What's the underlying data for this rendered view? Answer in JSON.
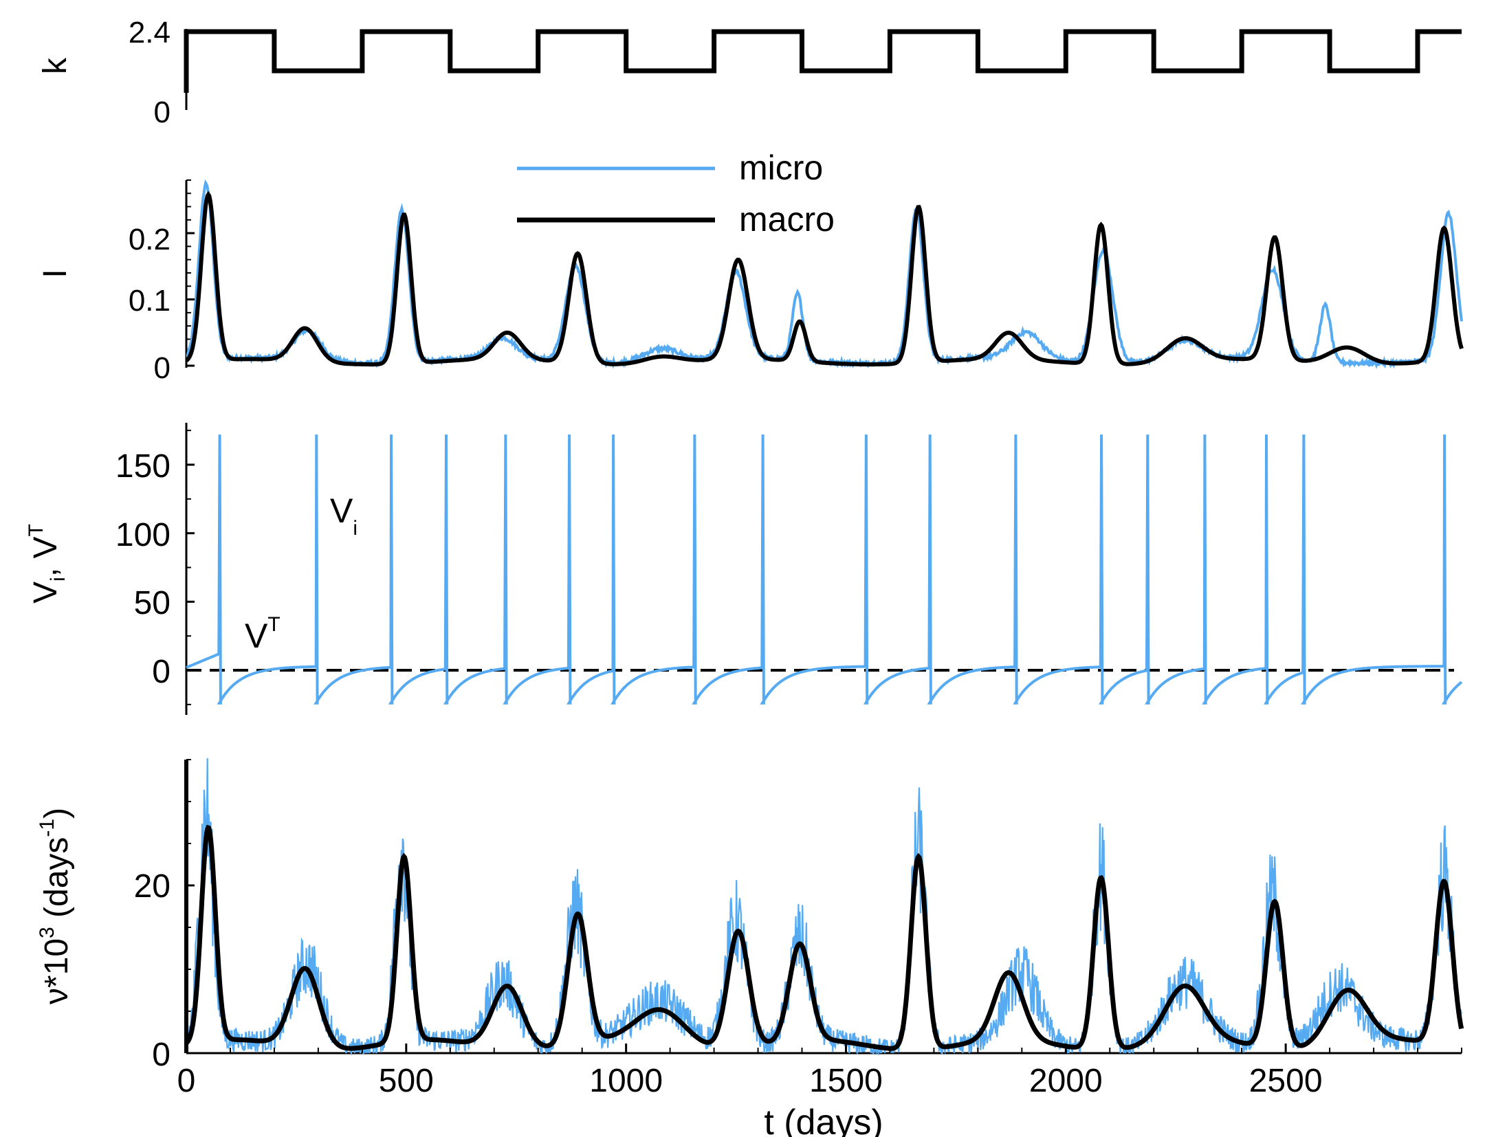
{
  "colors": {
    "micro": "#55aaf2",
    "macro": "#000000"
  },
  "legend": {
    "micro_label": "micro",
    "macro_label": "macro"
  },
  "xaxis": {
    "label": "t (days)",
    "ticks": [
      0,
      500,
      1000,
      1500,
      2000,
      2500
    ],
    "range": [
      0,
      2900
    ]
  },
  "chart_data": [
    {
      "type": "line",
      "id": "k",
      "ylabel": "k",
      "ylim": [
        0,
        2.4
      ],
      "yticks": [
        "0",
        "2.4"
      ],
      "series": [
        {
          "name": "k",
          "style": "step",
          "x": [
            0,
            200,
            400,
            600,
            800,
            1000,
            1200,
            1400,
            1600,
            1800,
            2000,
            2200,
            2400,
            2600,
            2800,
            2900
          ],
          "values": [
            2.4,
            1.2,
            2.4,
            1.2,
            2.4,
            1.2,
            2.4,
            1.2,
            2.4,
            1.2,
            2.4,
            1.2,
            2.4,
            1.2,
            2.4,
            2.4
          ]
        }
      ]
    },
    {
      "type": "line",
      "id": "I",
      "ylabel": "I",
      "ylim": [
        0,
        0.28
      ],
      "yticks": [
        "0",
        "0.1",
        "0.2"
      ],
      "peaks_macro": [
        [
          50,
          0.25,
          16
        ],
        [
          270,
          0.05,
          28
        ],
        [
          495,
          0.225,
          16
        ],
        [
          730,
          0.04,
          30
        ],
        [
          890,
          0.165,
          20
        ],
        [
          1080,
          0.01,
          40
        ],
        [
          1255,
          0.15,
          22
        ],
        [
          1395,
          0.06,
          14
        ],
        [
          1665,
          0.235,
          16
        ],
        [
          1870,
          0.04,
          30
        ],
        [
          2080,
          0.21,
          16
        ],
        [
          2270,
          0.035,
          40
        ],
        [
          2475,
          0.185,
          18
        ],
        [
          2640,
          0.025,
          40
        ],
        [
          2860,
          0.2,
          18
        ]
      ],
      "peaks_micro": [
        [
          45,
          0.265,
          16
        ],
        [
          275,
          0.045,
          30
        ],
        [
          490,
          0.23,
          16
        ],
        [
          720,
          0.03,
          30
        ],
        [
          885,
          0.145,
          22
        ],
        [
          1080,
          0.02,
          40
        ],
        [
          1250,
          0.13,
          22
        ],
        [
          1390,
          0.1,
          12
        ],
        [
          1660,
          0.23,
          16
        ],
        [
          1910,
          0.04,
          34
        ],
        [
          2085,
          0.17,
          22
        ],
        [
          2270,
          0.03,
          40
        ],
        [
          2470,
          0.135,
          24
        ],
        [
          2590,
          0.085,
          12
        ],
        [
          2870,
          0.22,
          18
        ]
      ]
    },
    {
      "type": "line",
      "id": "V",
      "ylabel": "V_i, V^T",
      "ylim": [
        -30,
        180
      ],
      "yticks": [
        "0",
        "50",
        "100",
        "150"
      ],
      "annotations": {
        "vi": "V",
        "vi_sub": "i",
        "vt": "V",
        "vt_sup": "T"
      },
      "threshold": 0,
      "spike_peak": 172,
      "spike_times": [
        75,
        295,
        465,
        590,
        725,
        870,
        970,
        1155,
        1310,
        1545,
        1690,
        1885,
        2080,
        2185,
        2315,
        2455,
        2540,
        2860
      ]
    },
    {
      "type": "line",
      "id": "nu",
      "ylabel": "ν*10³ (days⁻¹)",
      "ylim": [
        0,
        35
      ],
      "yticks": [
        "0",
        "20"
      ],
      "peaks_macro": [
        [
          50,
          25.5,
          16
        ],
        [
          270,
          9.5,
          32
        ],
        [
          495,
          22,
          16
        ],
        [
          730,
          7.5,
          34
        ],
        [
          890,
          15.5,
          22
        ],
        [
          1080,
          4,
          55
        ],
        [
          1255,
          14,
          24
        ],
        [
          1395,
          11.5,
          24
        ],
        [
          1665,
          23,
          17
        ],
        [
          1870,
          8,
          32
        ],
        [
          2080,
          20.5,
          17
        ],
        [
          2270,
          6.5,
          44
        ],
        [
          2475,
          17.5,
          19
        ],
        [
          2640,
          6.5,
          44
        ],
        [
          2860,
          19.5,
          19
        ]
      ],
      "peaks_micro": [
        [
          45,
          27,
          16
        ],
        [
          275,
          10,
          34
        ],
        [
          490,
          23,
          16
        ],
        [
          720,
          8,
          36
        ],
        [
          885,
          16,
          22
        ],
        [
          1080,
          5,
          60
        ],
        [
          1250,
          15,
          24
        ],
        [
          1395,
          12,
          24
        ],
        [
          1665,
          24,
          17
        ],
        [
          1900,
          8,
          36
        ],
        [
          2080,
          21,
          17
        ],
        [
          2270,
          7,
          46
        ],
        [
          2470,
          18,
          20
        ],
        [
          2620,
          7,
          46
        ],
        [
          2860,
          20,
          19
        ]
      ]
    }
  ]
}
